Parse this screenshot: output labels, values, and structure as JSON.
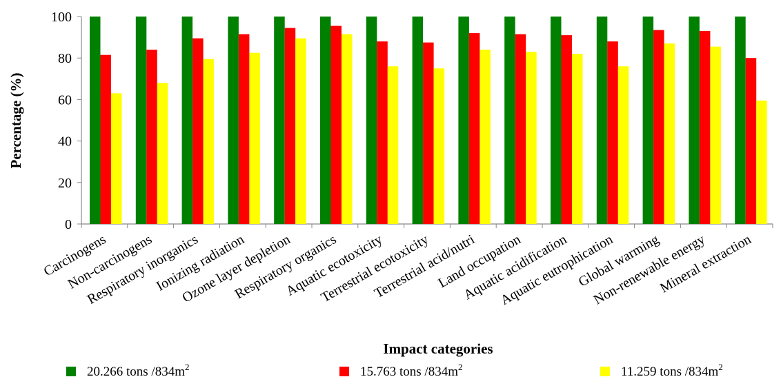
{
  "chart_data": {
    "type": "bar",
    "title": "",
    "xlabel": "Impact categories",
    "ylabel": "Percentage (%)",
    "ylim": [
      0,
      100
    ],
    "yticks": [
      "0",
      "20",
      "40",
      "60",
      "80",
      "100"
    ],
    "grid": false,
    "legend_position": "bottom",
    "categories": [
      "Carcinogens",
      "Non-carcinogens",
      "Respiratory inorganics",
      "Ionizing radiation",
      "Ozone layer depletion",
      "Respiratory organics",
      "Aquatic ecotoxicity",
      "Terrestrial ecotoxicity",
      "Terrestrial acid/nutri",
      "Land occupation",
      "Aquatic acidification",
      "Aquatic eutrophication",
      "Global warming",
      "Non-renewable energy",
      "Mineral extraction"
    ],
    "series": [
      {
        "name": "20.266 tons /834m",
        "name_sup": "2",
        "color": "#008000",
        "values": [
          100,
          100,
          100,
          100,
          100,
          100,
          100,
          100,
          100,
          100,
          100,
          100,
          100,
          100,
          100
        ]
      },
      {
        "name": "15.763 tons /834m",
        "name_sup": "2",
        "color": "#ff0000",
        "values": [
          81.5,
          84,
          89.5,
          91.5,
          94.5,
          95.5,
          88,
          87.5,
          92,
          91.5,
          91,
          88,
          93.5,
          93,
          80
        ]
      },
      {
        "name": "11.259 tons /834m",
        "name_sup": "2",
        "color": "#ffff00",
        "values": [
          63,
          68,
          79.5,
          82.5,
          89.5,
          91.5,
          76,
          75,
          84,
          83,
          82,
          76,
          87,
          85.5,
          59.5
        ]
      }
    ]
  }
}
